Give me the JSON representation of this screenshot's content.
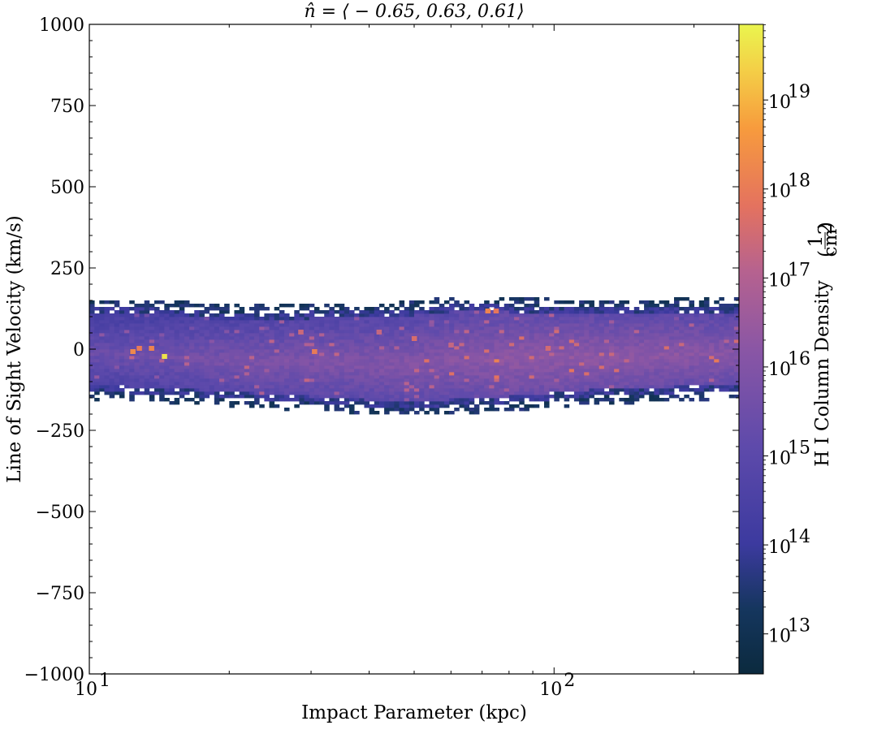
{
  "chart_data": {
    "type": "heatmap",
    "title": "n̂ = ⟨ − 0.65, 0.63, 0.61⟩",
    "xlabel": "Impact Parameter (kpc)",
    "ylabel": "Line of Sight Velocity (km/s)",
    "xscale": "log",
    "xlim": [
      10,
      250
    ],
    "ylim": [
      -1000,
      1000
    ],
    "x_ticks": [
      {
        "value": 10,
        "base": "10",
        "exp": "1"
      },
      {
        "value": 100,
        "base": "10",
        "exp": "2"
      }
    ],
    "y_ticks": [
      {
        "value": 1000,
        "label": "1000"
      },
      {
        "value": 750,
        "label": "750"
      },
      {
        "value": 500,
        "label": "500"
      },
      {
        "value": 250,
        "label": "250"
      },
      {
        "value": 0,
        "label": "0"
      },
      {
        "value": -250,
        "label": "−250"
      },
      {
        "value": -500,
        "label": "−500"
      },
      {
        "value": -750,
        "label": "−750"
      },
      {
        "value": -1000,
        "label": "−1000"
      }
    ],
    "colorbar": {
      "label": "H I Column Density",
      "unit_numerator": "1",
      "unit_denominator": "cm",
      "unit_denominator_exp": "2",
      "scale": "log",
      "colormap": "plasma-like",
      "range_log10": [
        12.55,
        19.85
      ],
      "ticks": [
        {
          "value_log10": 13,
          "base": "10",
          "exp": "13"
        },
        {
          "value_log10": 14,
          "base": "10",
          "exp": "14"
        },
        {
          "value_log10": 15,
          "base": "10",
          "exp": "15"
        },
        {
          "value_log10": 16,
          "base": "10",
          "exp": "16"
        },
        {
          "value_log10": 17,
          "base": "10",
          "exp": "17"
        },
        {
          "value_log10": 18,
          "base": "10",
          "exp": "18"
        },
        {
          "value_log10": 19,
          "base": "10",
          "exp": "19"
        }
      ]
    },
    "grid": false,
    "band_description_profile": {
      "x_kpc": [
        10,
        15,
        20,
        30,
        45,
        60,
        80,
        120,
        180,
        250
      ],
      "vel_upper": [
        130,
        125,
        110,
        115,
        120,
        135,
        135,
        125,
        130,
        130
      ],
      "vel_lower": [
        -130,
        -140,
        -150,
        -165,
        -180,
        -175,
        -165,
        -145,
        -135,
        -130
      ],
      "core_log10_center": [
        15.4,
        15.6,
        15.8,
        15.9,
        16.0,
        16.1,
        16.3,
        16.3,
        16.2,
        16.1
      ]
    },
    "highlights": [
      {
        "x_kpc": 12.8,
        "v": 5,
        "log10N": 18.0
      },
      {
        "x_kpc": 12.4,
        "v": -5,
        "log10N": 18.3
      },
      {
        "x_kpc": 13.6,
        "v": 5,
        "log10N": 18.2
      },
      {
        "x_kpc": 14.5,
        "v": -20,
        "log10N": 19.6
      },
      {
        "x_kpc": 30.5,
        "v": -5,
        "log10N": 18.0
      },
      {
        "x_kpc": 28.5,
        "v": 55,
        "log10N": 17.4
      },
      {
        "x_kpc": 50,
        "v": 35,
        "log10N": 17.6
      },
      {
        "x_kpc": 72,
        "v": 120,
        "log10N": 18.2
      },
      {
        "x_kpc": 75,
        "v": 120,
        "log10N": 17.9
      },
      {
        "x_kpc": 97,
        "v": 5,
        "log10N": 17.5
      },
      {
        "x_kpc": 60,
        "v": 15,
        "log10N": 17.3
      },
      {
        "x_kpc": 42,
        "v": 55,
        "log10N": 17.3
      }
    ]
  }
}
